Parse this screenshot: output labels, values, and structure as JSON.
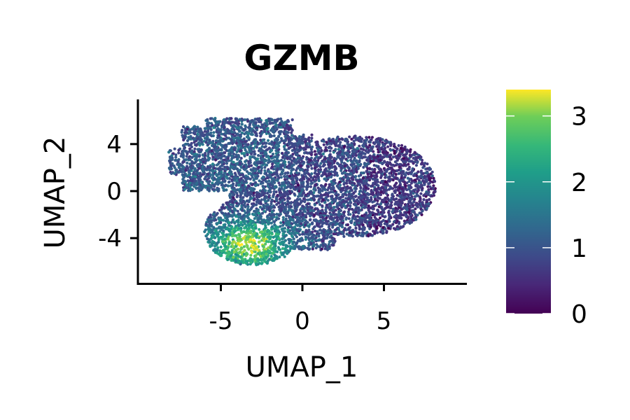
{
  "chart_data": {
    "type": "scatter",
    "title": "GZMB",
    "xlabel": "UMAP_1",
    "ylabel": "UMAP_2",
    "xlim": [
      -10,
      10
    ],
    "ylim": [
      -7.8,
      7.8
    ],
    "xticks": [
      -5,
      0,
      5
    ],
    "xtick_labels": [
      "-5",
      "0",
      "5"
    ],
    "yticks": [
      -4,
      0,
      4
    ],
    "ytick_labels": [
      "-4",
      "0",
      "4"
    ],
    "colorbar": {
      "colormap": "viridis",
      "range": [
        0,
        3.4
      ],
      "ticks": [
        0,
        1,
        2,
        3
      ],
      "tick_labels": [
        "0",
        "1",
        "2",
        "3"
      ]
    },
    "grid": false,
    "expression_regions": [
      {
        "region": "lower-left lobe (UMAP_1 -6 to -1, UMAP_2 -6 to -2)",
        "level": 2.6
      },
      {
        "region": "upper-left arm (UMAP_1 -8 to -2, UMAP_2 0 to 6)",
        "level": 1.2
      },
      {
        "region": "right body (UMAP_1 0 to 8, UMAP_2 -4 to 4)",
        "level": 0.8
      }
    ]
  }
}
